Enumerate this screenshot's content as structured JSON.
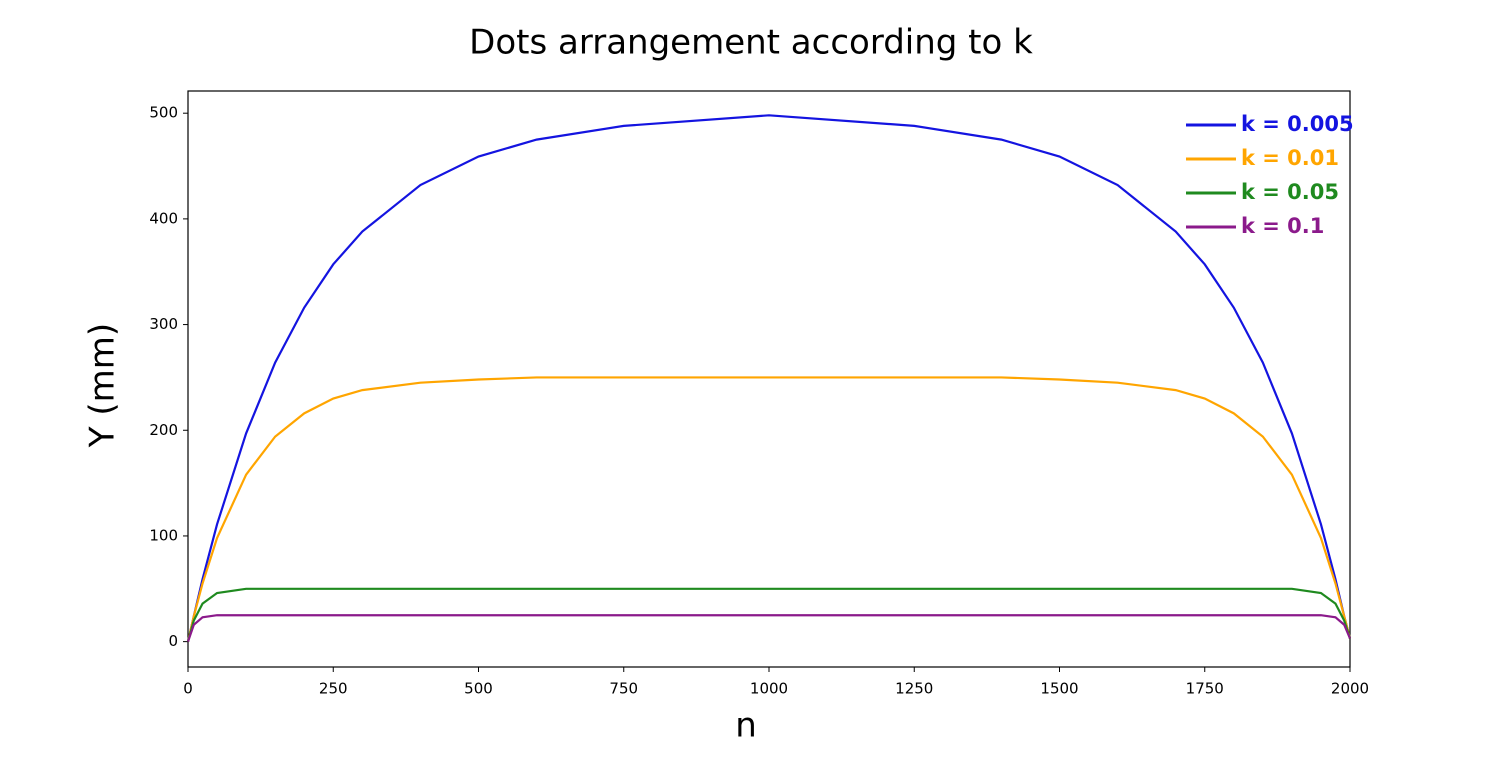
{
  "chart_data": {
    "type": "line",
    "title": "Dots arrangement according to k",
    "x_label": "n",
    "y_label": "Y (mm)",
    "x": [
      0,
      10,
      25,
      50,
      100,
      150,
      200,
      250,
      300,
      400,
      500,
      600,
      750,
      1000,
      1250,
      1400,
      1500,
      1600,
      1700,
      1750,
      1800,
      1850,
      1900,
      1950,
      1975,
      1990,
      2000
    ],
    "series": [
      {
        "name": "k = 0.005",
        "color": "#1414e0",
        "values": [
          0,
          24,
          59,
          111,
          197,
          264,
          316,
          357,
          388,
          432,
          459,
          475,
          488,
          498,
          488,
          475,
          459,
          432,
          388,
          357,
          316,
          264,
          197,
          111,
          59,
          24,
          3
        ]
      },
      {
        "name": "k = 0.01",
        "color": "#ffa500",
        "values": [
          0,
          24,
          55,
          98,
          158,
          194,
          216,
          230,
          238,
          245,
          248,
          250,
          250,
          250,
          250,
          250,
          248,
          245,
          238,
          230,
          216,
          194,
          158,
          98,
          55,
          24,
          3
        ]
      },
      {
        "name": "k = 0.05",
        "color": "#1f8a1f",
        "values": [
          0,
          20,
          36,
          46,
          50,
          50,
          50,
          50,
          50,
          50,
          50,
          50,
          50,
          50,
          50,
          50,
          50,
          50,
          50,
          50,
          50,
          50,
          50,
          46,
          36,
          20,
          3
        ]
      },
      {
        "name": "k = 0.1",
        "color": "#8b1a8b",
        "values": [
          0,
          16,
          23,
          25,
          25,
          25,
          25,
          25,
          25,
          25,
          25,
          25,
          25,
          25,
          25,
          25,
          25,
          25,
          25,
          25,
          25,
          25,
          25,
          25,
          23,
          16,
          3
        ]
      }
    ],
    "xlim": [
      0,
      2000
    ],
    "xticks": [
      0,
      250,
      500,
      750,
      1000,
      1250,
      1500,
      1750,
      2000
    ],
    "ylim": [
      -24,
      521
    ],
    "yticks": [
      0,
      100,
      200,
      300,
      400,
      500
    ],
    "legend": "upper right"
  }
}
